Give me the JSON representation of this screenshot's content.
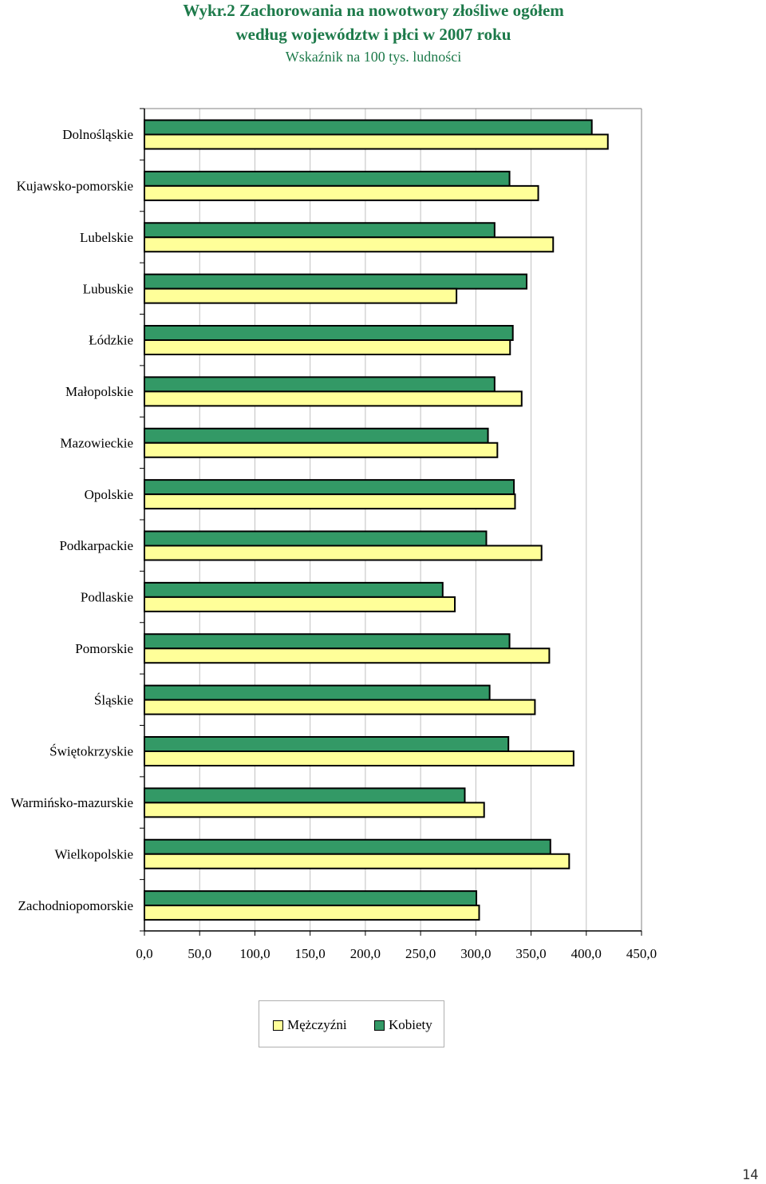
{
  "header": {
    "title_line1": "Wykr.2 Zachorowania na nowotwory złośliwe ogółem",
    "title_line2": "według województw i płci w 2007 roku",
    "subtitle": "Wskaźnik na 100 tys. ludności"
  },
  "colors": {
    "men": "#ffff99",
    "women": "#339966",
    "bar_stroke": "#000000",
    "grid": "#c0c0c0",
    "title": "#1d7a4a"
  },
  "chart_data": {
    "type": "bar",
    "orientation": "horizontal",
    "title": "Wykr.2 Zachorowania na nowotwory złośliwe ogółem według województw i płci w 2007 roku",
    "subtitle": "Wskaźnik na 100 tys. ludności",
    "categories": [
      "Dolnośląskie",
      "Kujawsko-pomorskie",
      "Lubelskie",
      "Lubuskie",
      "Łódzkie",
      "Małopolskie",
      "Mazowieckie",
      "Opolskie",
      "Podkarpackie",
      "Podlaskie",
      "Pomorskie",
      "Śląskie",
      "Świętokrzyskie",
      "Warmińsko-mazurskie",
      "Wielkopolskie",
      "Zachodniopomorskie"
    ],
    "series": [
      {
        "name": "Mężczyźni",
        "color": "#ffff99",
        "values": [
          419.5,
          356.5,
          370.0,
          282.5,
          331.0,
          341.5,
          319.5,
          335.5,
          359.5,
          281.0,
          366.5,
          353.5,
          388.5,
          307.5,
          384.5,
          303.0
        ]
      },
      {
        "name": "Kobiety",
        "color": "#339966",
        "values": [
          405.0,
          330.5,
          317.0,
          346.0,
          333.5,
          317.0,
          311.0,
          334.5,
          309.5,
          270.0,
          330.5,
          312.5,
          329.5,
          290.0,
          367.5,
          300.5
        ]
      }
    ],
    "xlim": [
      0,
      450
    ],
    "ticks": [
      "0,0",
      "50,0",
      "100,0",
      "150,0",
      "200,0",
      "250,0",
      "300,0",
      "350,0",
      "400,0",
      "450,0"
    ],
    "grid": true,
    "legend_position": "bottom"
  },
  "page_number": "14"
}
